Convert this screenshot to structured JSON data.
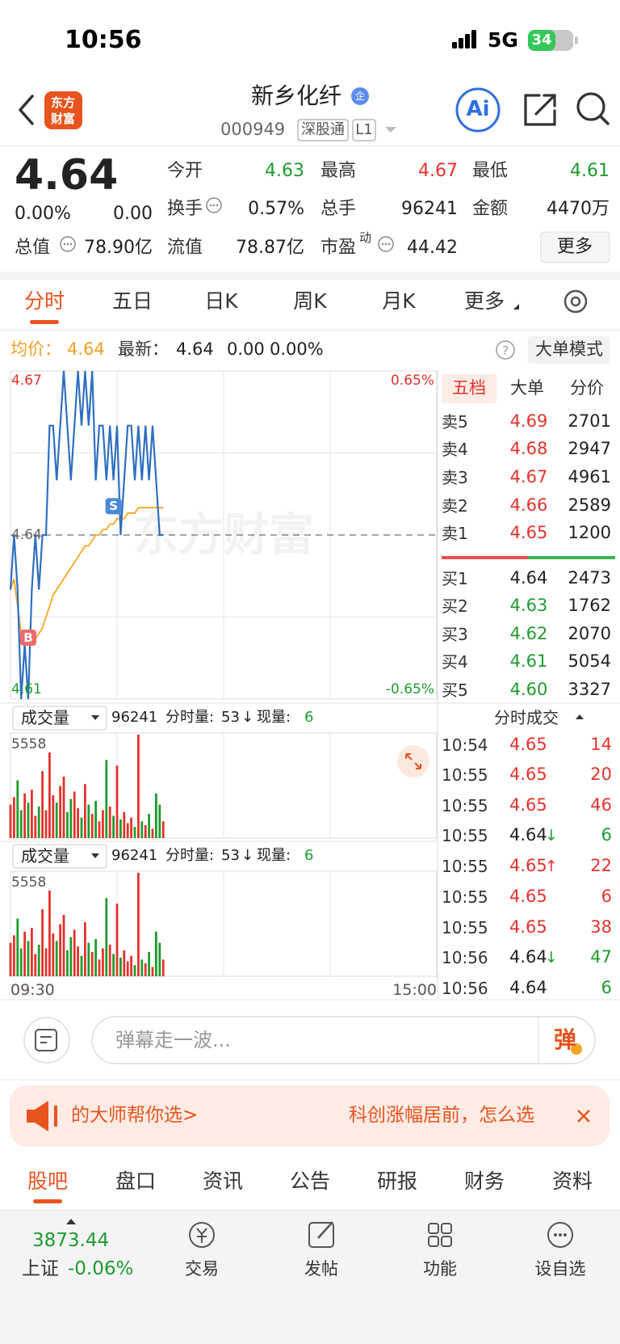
{
  "status": {
    "time": "10:56",
    "network": "5G",
    "battery": "34"
  },
  "header": {
    "logo": [
      "东方",
      "财富"
    ],
    "title": "新乡化纤",
    "badge": "企",
    "code": "000949",
    "tags": [
      "深股通",
      "L1"
    ],
    "ai": "Ai"
  },
  "quote": {
    "price": "4.64",
    "change_pct": "0.00%",
    "change_abs": "0.00",
    "total": {
      "label": "总值",
      "value": "78.90亿"
    },
    "grid": [
      [
        {
          "label": "今开",
          "value": "4.63",
          "color": "#1f9b2e"
        },
        {
          "label": "最高",
          "value": "4.67",
          "color": "#e5322d"
        },
        {
          "label": "最低",
          "value": "4.61",
          "color": "#1f9b2e"
        }
      ],
      [
        {
          "label": "换手",
          "value": "0.57%"
        },
        {
          "label": "总手",
          "value": "96241"
        },
        {
          "label": "金额",
          "value": "4470万"
        }
      ],
      [
        {
          "label": "流值",
          "value": "78.87亿"
        },
        {
          "label": "市盈",
          "sup": "动",
          "value": "44.42"
        }
      ]
    ],
    "more": "更多"
  },
  "tabs": {
    "items": [
      "分时",
      "五日",
      "日K",
      "周K",
      "月K",
      "更多"
    ],
    "active": 0
  },
  "info": {
    "avg_label": "均价：",
    "avg": "4.64",
    "latest_label": "最新：",
    "latest": "4.64",
    "change_abs": "0.00",
    "change_pct": "0.00%",
    "mode": "大单模式"
  },
  "chart": {
    "ylim": [
      4.61,
      4.67
    ],
    "yticks": [
      4.61,
      4.64,
      4.67
    ],
    "ytick_colors": [
      "#1f9b2e",
      "#666666",
      "#e5322d"
    ],
    "pct_labels": [
      "-0.65%",
      "0.65%"
    ],
    "xlim": [
      0,
      120
    ],
    "price_color": "#2f6fbf",
    "avg_color": "#f5a623",
    "price": [
      4.63,
      4.64,
      4.63,
      4.61,
      4.62,
      4.61,
      4.63,
      4.64,
      4.63,
      4.64,
      4.64,
      4.66,
      4.66,
      4.65,
      4.66,
      4.67,
      4.66,
      4.65,
      4.66,
      4.67,
      4.66,
      4.67,
      4.66,
      4.67,
      4.65,
      4.66,
      4.66,
      4.65,
      4.66,
      4.65,
      4.66,
      4.64,
      4.65,
      4.66,
      4.66,
      4.65,
      4.66,
      4.65,
      4.66,
      4.65,
      4.66,
      4.65,
      4.64,
      4.64
    ],
    "avg": [
      4.63,
      4.632,
      4.627,
      4.622,
      4.621,
      4.62,
      4.62,
      4.621,
      4.622,
      4.623,
      4.625,
      4.627,
      4.629,
      4.63,
      4.631,
      4.632,
      4.633,
      4.634,
      4.635,
      4.636,
      4.637,
      4.638,
      4.638,
      4.639,
      4.64,
      4.64,
      4.641,
      4.641,
      4.642,
      4.642,
      4.643,
      4.643,
      4.643,
      4.644,
      4.644,
      4.644,
      4.645,
      4.645,
      4.645,
      4.645,
      4.645,
      4.645,
      4.645,
      4.645
    ],
    "markers": [
      {
        "label": "S",
        "index": 29,
        "color": "#4a8ad8"
      },
      {
        "label": "B",
        "index": 5,
        "color": "#f06a6a"
      }
    ],
    "watermark": "东方财富",
    "xlabels": [
      "09:30",
      "15:00"
    ],
    "volume": {
      "label": "成交量",
      "total": "96241",
      "minute_label": "分时量:",
      "minute": "53",
      "arrow": "↓",
      "now_label": "现量:",
      "now": "6",
      "ylim": [
        0,
        5558
      ],
      "values": [
        1800,
        2200,
        3100,
        1500,
        2400,
        1900,
        2600,
        1200,
        1700,
        3600,
        1500,
        4600,
        2300,
        1900,
        2800,
        3300,
        1400,
        2100,
        2500,
        1600,
        1100,
        2900,
        1800,
        1300,
        2000,
        900,
        1500,
        4200,
        1700,
        1200,
        3900,
        1000,
        1400,
        800,
        1100,
        600,
        5558,
        900,
        700,
        1300,
        500,
        2400,
        1800,
        900
      ],
      "up_color": "#e5322d",
      "down_color": "#1f9b2e"
    }
  },
  "orderbook": {
    "tabs": [
      "五档",
      "大单",
      "分价"
    ],
    "sells": [
      {
        "label": "卖5",
        "price": "4.69",
        "volume": "2701",
        "color": "#e5322d"
      },
      {
        "label": "卖4",
        "price": "4.68",
        "volume": "2947",
        "color": "#e5322d"
      },
      {
        "label": "卖3",
        "price": "4.67",
        "volume": "4961",
        "color": "#e5322d"
      },
      {
        "label": "卖2",
        "price": "4.66",
        "volume": "2589",
        "color": "#e5322d"
      },
      {
        "label": "卖1",
        "price": "4.65",
        "volume": "1200",
        "color": "#e5322d"
      }
    ],
    "buys": [
      {
        "label": "买1",
        "price": "4.64",
        "volume": "2473",
        "color": "#222222"
      },
      {
        "label": "买2",
        "price": "4.63",
        "volume": "1762",
        "color": "#1f9b2e"
      },
      {
        "label": "买3",
        "price": "4.62",
        "volume": "2070",
        "color": "#1f9b2e"
      },
      {
        "label": "买4",
        "price": "4.61",
        "volume": "5054",
        "color": "#1f9b2e"
      },
      {
        "label": "买5",
        "price": "4.60",
        "volume": "3327",
        "color": "#1f9b2e"
      }
    ],
    "trades_title": "分时成交",
    "trades": [
      {
        "time": "10:54",
        "price": "4.65",
        "volume": "14",
        "price_color": "#e5322d",
        "color": "#e5322d"
      },
      {
        "time": "10:55",
        "price": "4.65",
        "volume": "20",
        "price_color": "#e5322d",
        "color": "#e5322d"
      },
      {
        "time": "10:55",
        "price": "4.65",
        "volume": "46",
        "price_color": "#e5322d",
        "color": "#e5322d"
      },
      {
        "time": "10:55",
        "price": "4.64",
        "arrow": "↓",
        "volume": "6",
        "price_color": "#222222",
        "color": "#1f9b2e"
      },
      {
        "time": "10:55",
        "price": "4.65",
        "arrow": "↑",
        "volume": "22",
        "price_color": "#e5322d",
        "color": "#e5322d"
      },
      {
        "time": "10:55",
        "price": "4.65",
        "volume": "6",
        "price_color": "#e5322d",
        "color": "#e5322d"
      },
      {
        "time": "10:55",
        "price": "4.65",
        "volume": "38",
        "price_color": "#e5322d",
        "color": "#e5322d"
      },
      {
        "time": "10:56",
        "price": "4.64",
        "arrow": "↓",
        "volume": "47",
        "price_color": "#222222",
        "color": "#1f9b2e"
      },
      {
        "time": "10:56",
        "price": "4.64",
        "volume": "6",
        "price_color": "#222222",
        "color": "#1f9b2e"
      }
    ]
  },
  "comment": {
    "placeholder": "弹幕走一波...",
    "button": "弹"
  },
  "banner": {
    "left": "的大师帮你选>",
    "right": "科创涨幅居前，怎么选"
  },
  "bottom_tabs": {
    "items": [
      "股吧",
      "盘口",
      "资讯",
      "公告",
      "研报",
      "财务",
      "资料"
    ],
    "active": 0
  },
  "footer": {
    "index_value": "3873.44",
    "index_name": "上证",
    "index_change": "-0.06%",
    "nav": [
      "交易",
      "发帖",
      "功能",
      "设自选"
    ]
  }
}
